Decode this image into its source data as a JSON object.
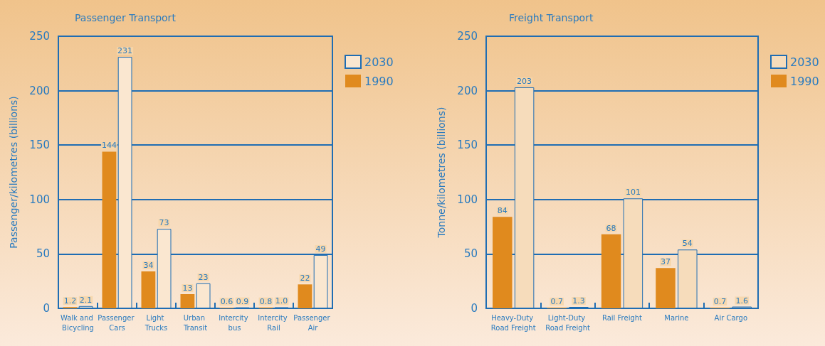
{
  "chart_data": [
    {
      "type": "bar",
      "title": "Passenger Transport",
      "ylabel": "Passenger/kilometres (billions)",
      "categories": [
        "Walk and Bicycling",
        "Passenger Cars",
        "Light Trucks",
        "Urban Transit",
        "Intercity bus",
        "Intercity Rail",
        "Passenger Air"
      ],
      "series": [
        {
          "name": "1990",
          "color": "#e08a1e",
          "values": [
            1.2,
            144,
            34,
            13,
            0.6,
            0.8,
            22
          ],
          "value_labels": [
            "1.2",
            "144",
            "34",
            "13",
            "0.6",
            "0.8",
            "22"
          ]
        },
        {
          "name": "2030",
          "color": "#fae7d0",
          "values": [
            2.1,
            231,
            73,
            23,
            0.9,
            1.0,
            49
          ],
          "value_labels": [
            "2.1",
            "231",
            "73",
            "23",
            "0.9",
            "1.0",
            "49"
          ]
        }
      ],
      "ylim": [
        0,
        250
      ],
      "yticks": [
        0,
        50,
        100,
        150,
        200,
        250
      ],
      "grid": "y",
      "legend": "top right"
    },
    {
      "type": "bar",
      "title": "Freight Transport",
      "ylabel": "Tonne/kilometres (billions)",
      "categories": [
        "Heavy-Duty Road Freight",
        "Light-Duty Road Freight",
        "Rail Freight",
        "Marine",
        "Air Cargo"
      ],
      "series": [
        {
          "name": "1990",
          "color": "#e08a1e",
          "values": [
            84,
            0.7,
            68,
            37,
            0.7
          ],
          "value_labels": [
            "84",
            "0.7",
            "68",
            "37",
            "0.7"
          ]
        },
        {
          "name": "2030",
          "color": "#f6dcbb",
          "values": [
            203,
            1.3,
            101,
            54,
            1.6
          ],
          "value_labels": [
            "203",
            "1.3",
            "101",
            "54",
            "1.6"
          ]
        }
      ],
      "ylim": [
        0,
        250
      ],
      "yticks": [
        0,
        50,
        100,
        150,
        200,
        250
      ],
      "grid": "y",
      "legend": "top right"
    }
  ]
}
